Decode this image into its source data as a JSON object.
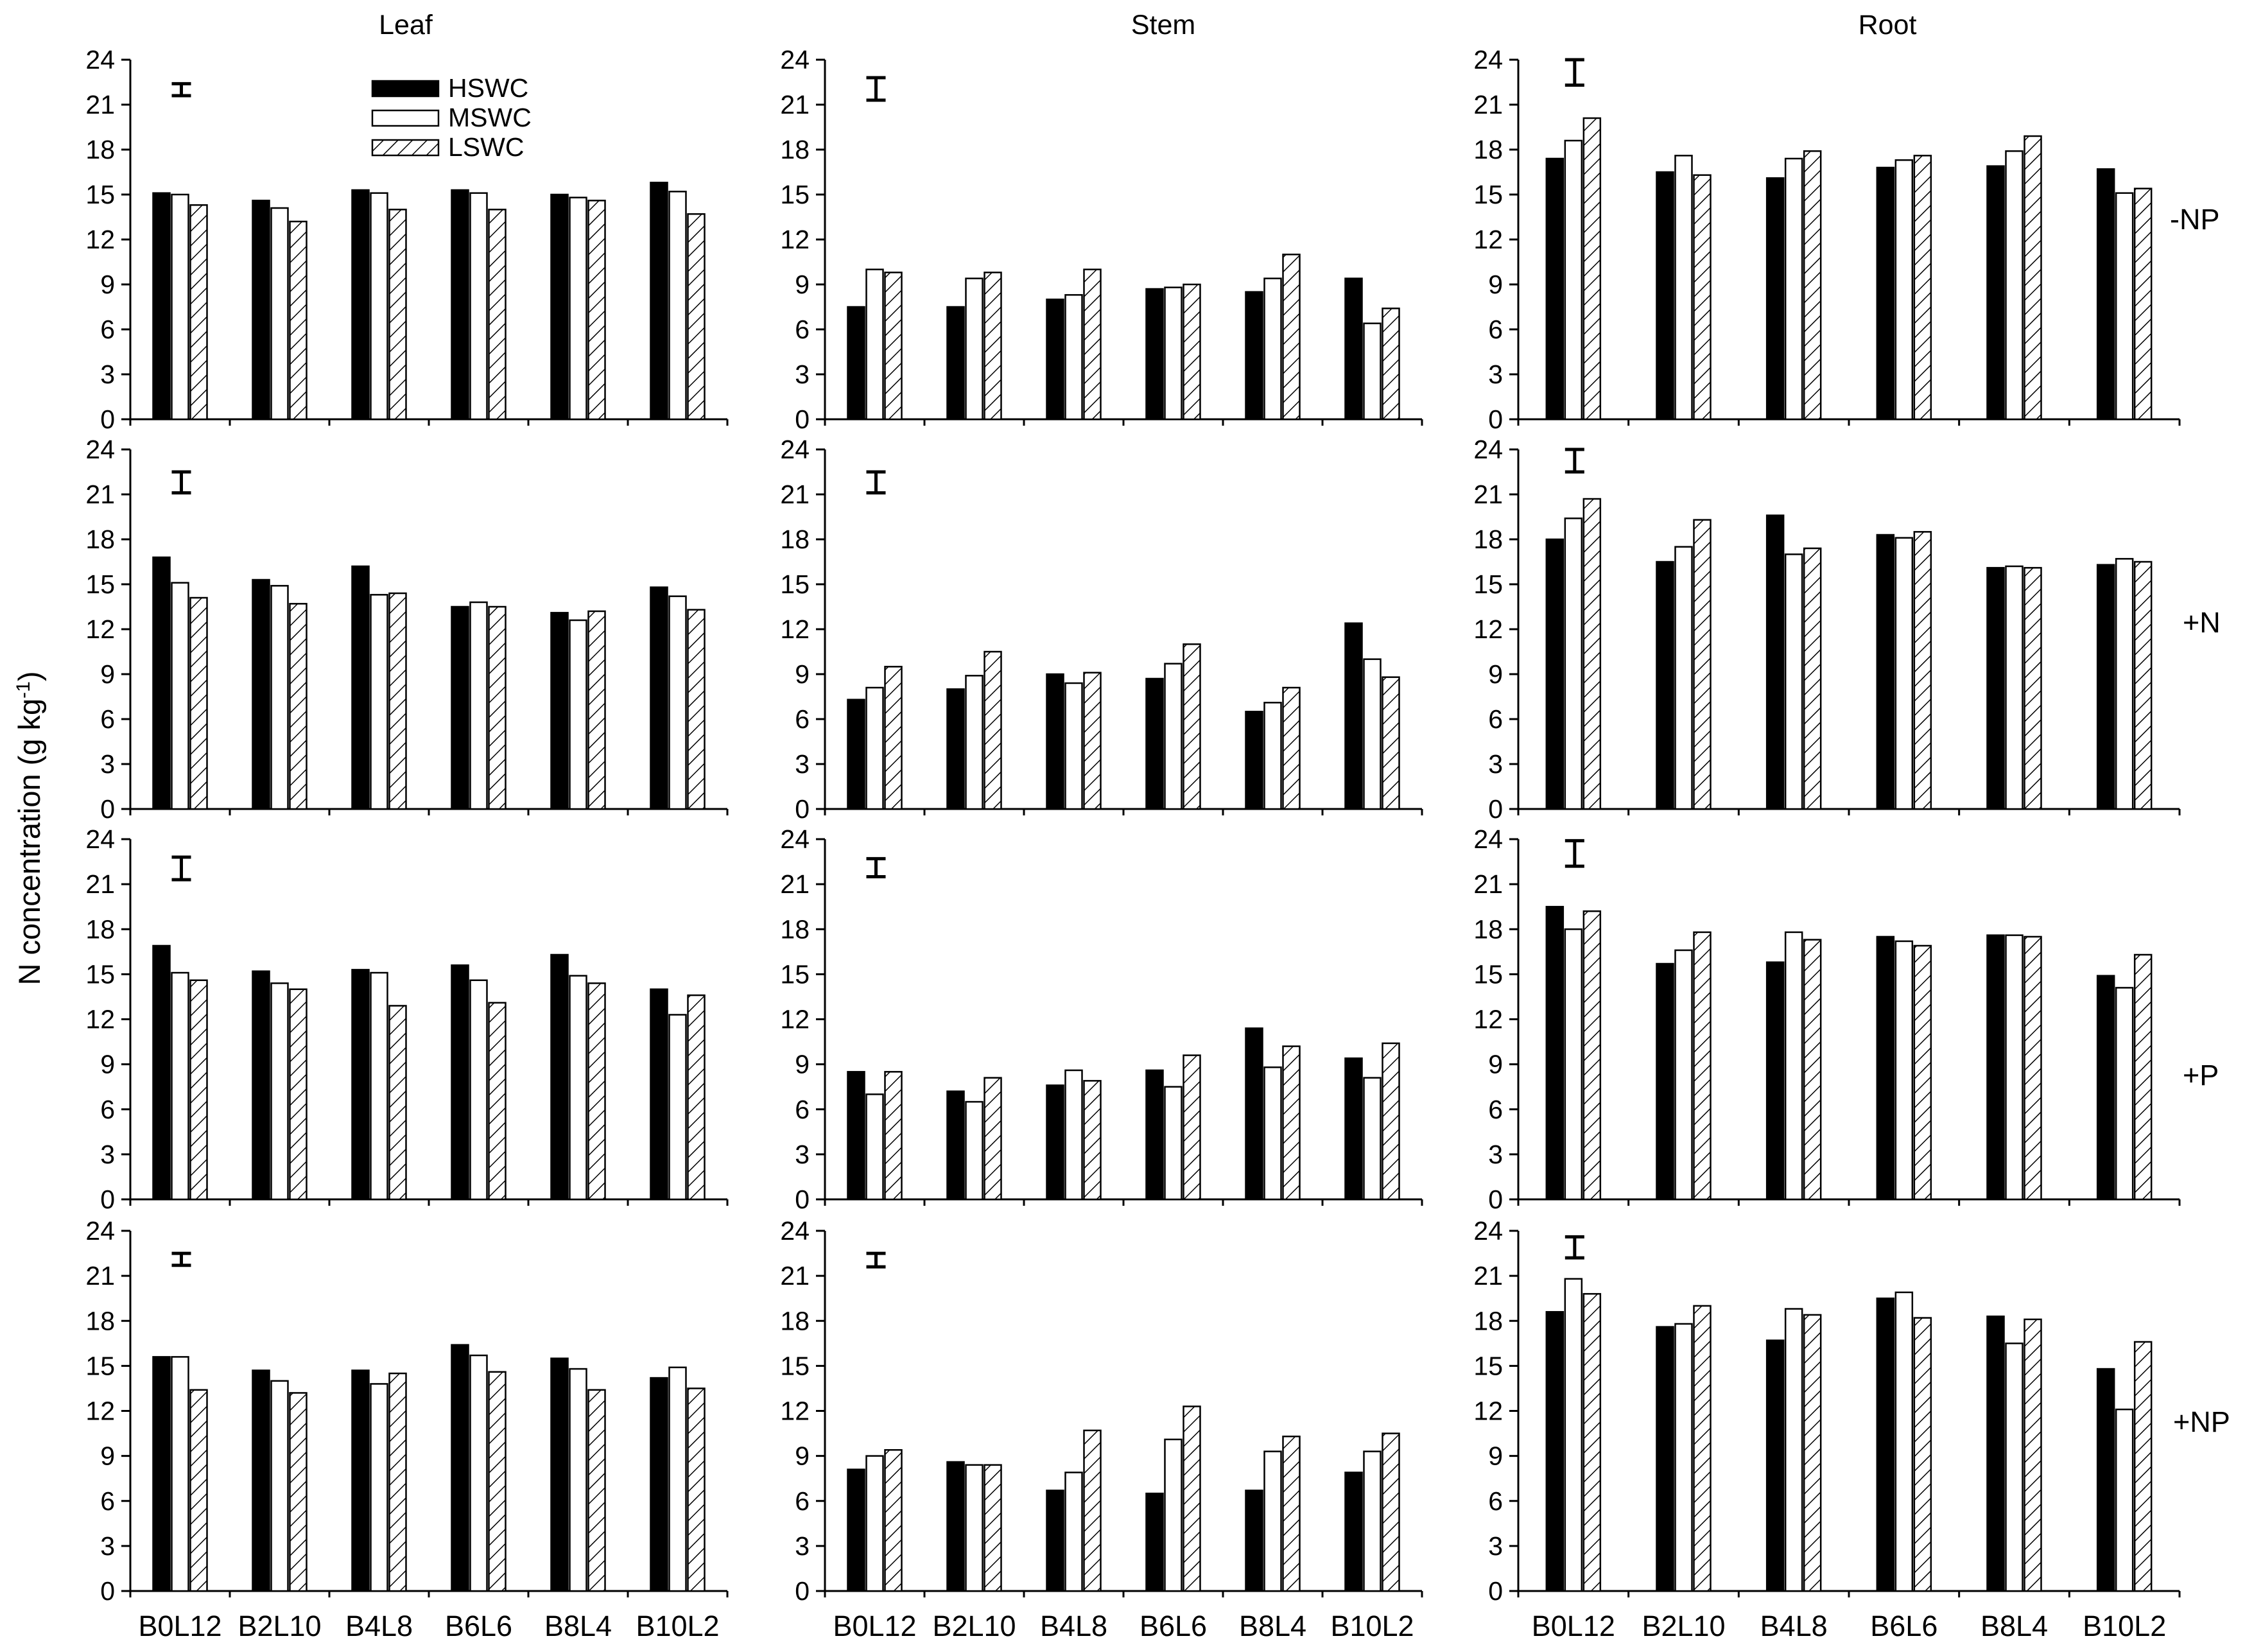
{
  "figure": {
    "ylabel": "N concentration (g kg",
    "ylabel_superscript": "-1",
    "ylabel_close": ")",
    "columns": [
      "Leaf",
      "Stem",
      "Root"
    ],
    "rows": [
      "-NP",
      "+N",
      "+P",
      "+NP"
    ],
    "legend": [
      "HSWC",
      "MSWC",
      "LSWC"
    ],
    "categories": [
      "B0L12",
      "B2L10",
      "B4L8",
      "B6L6",
      "B8L4",
      "B10L2"
    ],
    "yticks": [
      "0",
      "3",
      "6",
      "9",
      "12",
      "15",
      "18",
      "21",
      "24"
    ]
  },
  "colors": {
    "HSWC": "#000000",
    "MSWC": "#ffffff",
    "LSWC": "hatch"
  },
  "chart_data": [
    {
      "type": "bar",
      "organ": "Leaf",
      "treatment": "-NP",
      "ylim": [
        0,
        24
      ],
      "error_bar": [
        21.6,
        22.4
      ],
      "series": [
        {
          "name": "HSWC",
          "values": [
            15.1,
            14.6,
            15.3,
            15.3,
            15.0,
            15.8
          ]
        },
        {
          "name": "MSWC",
          "values": [
            15.0,
            14.1,
            15.1,
            15.1,
            14.8,
            15.2
          ]
        },
        {
          "name": "LSWC",
          "values": [
            14.3,
            13.2,
            14.0,
            14.0,
            14.6,
            13.7
          ]
        }
      ]
    },
    {
      "type": "bar",
      "organ": "Stem",
      "treatment": "-NP",
      "ylim": [
        0,
        24
      ],
      "error_bar": [
        21.3,
        22.8
      ],
      "series": [
        {
          "name": "HSWC",
          "values": [
            7.5,
            7.5,
            8.0,
            8.7,
            8.5,
            9.4
          ]
        },
        {
          "name": "MSWC",
          "values": [
            10.0,
            9.4,
            8.3,
            8.8,
            9.4,
            6.4
          ]
        },
        {
          "name": "LSWC",
          "values": [
            9.8,
            9.8,
            10.0,
            9.0,
            11.0,
            7.4
          ]
        }
      ]
    },
    {
      "type": "bar",
      "organ": "Root",
      "treatment": "-NP",
      "ylim": [
        0,
        24
      ],
      "error_bar": [
        22.3,
        24.0
      ],
      "series": [
        {
          "name": "HSWC",
          "values": [
            17.4,
            16.5,
            16.1,
            16.8,
            16.9,
            16.7
          ]
        },
        {
          "name": "MSWC",
          "values": [
            18.6,
            17.6,
            17.4,
            17.3,
            17.9,
            15.1
          ]
        },
        {
          "name": "LSWC",
          "values": [
            20.1,
            16.3,
            17.9,
            17.6,
            18.9,
            15.4
          ]
        }
      ]
    },
    {
      "type": "bar",
      "organ": "Leaf",
      "treatment": "+N",
      "ylim": [
        0,
        24
      ],
      "error_bar": [
        21.1,
        22.5
      ],
      "series": [
        {
          "name": "HSWC",
          "values": [
            16.8,
            15.3,
            16.2,
            13.5,
            13.1,
            14.8
          ]
        },
        {
          "name": "MSWC",
          "values": [
            15.1,
            14.9,
            14.3,
            13.8,
            12.6,
            14.2
          ]
        },
        {
          "name": "LSWC",
          "values": [
            14.1,
            13.7,
            14.4,
            13.5,
            13.2,
            13.3
          ]
        }
      ]
    },
    {
      "type": "bar",
      "organ": "Stem",
      "treatment": "+N",
      "ylim": [
        0,
        24
      ],
      "error_bar": [
        21.1,
        22.5
      ],
      "series": [
        {
          "name": "HSWC",
          "values": [
            7.3,
            8.0,
            9.0,
            8.7,
            6.5,
            12.4
          ]
        },
        {
          "name": "MSWC",
          "values": [
            8.1,
            8.9,
            8.4,
            9.7,
            7.1,
            10.0
          ]
        },
        {
          "name": "LSWC",
          "values": [
            9.5,
            10.5,
            9.1,
            11.0,
            8.1,
            8.8
          ]
        }
      ]
    },
    {
      "type": "bar",
      "organ": "Root",
      "treatment": "+N",
      "ylim": [
        0,
        24
      ],
      "error_bar": [
        22.5,
        24.0
      ],
      "series": [
        {
          "name": "HSWC",
          "values": [
            18.0,
            16.5,
            19.6,
            18.3,
            16.1,
            16.3
          ]
        },
        {
          "name": "MSWC",
          "values": [
            19.4,
            17.5,
            17.0,
            18.1,
            16.2,
            16.7
          ]
        },
        {
          "name": "LSWC",
          "values": [
            20.7,
            19.3,
            17.4,
            18.5,
            16.1,
            16.5
          ]
        }
      ]
    },
    {
      "type": "bar",
      "organ": "Leaf",
      "treatment": "+P",
      "ylim": [
        0,
        24
      ],
      "error_bar": [
        21.3,
        22.8
      ],
      "series": [
        {
          "name": "HSWC",
          "values": [
            16.9,
            15.2,
            15.3,
            15.6,
            16.3,
            14.0
          ]
        },
        {
          "name": "MSWC",
          "values": [
            15.1,
            14.4,
            15.1,
            14.6,
            14.9,
            12.3
          ]
        },
        {
          "name": "LSWC",
          "values": [
            14.6,
            14.0,
            12.9,
            13.1,
            14.4,
            13.6
          ]
        }
      ]
    },
    {
      "type": "bar",
      "organ": "Stem",
      "treatment": "+P",
      "ylim": [
        0,
        24
      ],
      "error_bar": [
        21.5,
        22.7
      ],
      "series": [
        {
          "name": "HSWC",
          "values": [
            8.5,
            7.2,
            7.6,
            8.6,
            11.4,
            9.4
          ]
        },
        {
          "name": "MSWC",
          "values": [
            7.0,
            6.5,
            8.6,
            7.5,
            8.8,
            8.1
          ]
        },
        {
          "name": "LSWC",
          "values": [
            8.5,
            8.1,
            7.9,
            9.6,
            10.2,
            10.4
          ]
        }
      ]
    },
    {
      "type": "bar",
      "organ": "Root",
      "treatment": "+P",
      "ylim": [
        0,
        24
      ],
      "error_bar": [
        22.2,
        23.9
      ],
      "series": [
        {
          "name": "HSWC",
          "values": [
            19.5,
            15.7,
            15.8,
            17.5,
            17.6,
            14.9
          ]
        },
        {
          "name": "MSWC",
          "values": [
            18.0,
            16.6,
            17.8,
            17.2,
            17.6,
            14.1
          ]
        },
        {
          "name": "LSWC",
          "values": [
            19.2,
            17.8,
            17.3,
            16.9,
            17.5,
            16.3
          ]
        }
      ]
    },
    {
      "type": "bar",
      "organ": "Leaf",
      "treatment": "+NP",
      "ylim": [
        0,
        24
      ],
      "error_bar": [
        21.7,
        22.5
      ],
      "series": [
        {
          "name": "HSWC",
          "values": [
            15.6,
            14.7,
            14.7,
            16.4,
            15.5,
            14.2
          ]
        },
        {
          "name": "MSWC",
          "values": [
            15.6,
            14.0,
            13.8,
            15.7,
            14.8,
            14.9
          ]
        },
        {
          "name": "LSWC",
          "values": [
            13.4,
            13.2,
            14.5,
            14.6,
            13.4,
            13.5
          ]
        }
      ]
    },
    {
      "type": "bar",
      "organ": "Stem",
      "treatment": "+NP",
      "ylim": [
        0,
        24
      ],
      "error_bar": [
        21.6,
        22.5
      ],
      "series": [
        {
          "name": "HSWC",
          "values": [
            8.1,
            8.6,
            6.7,
            6.5,
            6.7,
            7.9
          ]
        },
        {
          "name": "MSWC",
          "values": [
            9.0,
            8.4,
            7.9,
            10.1,
            9.3,
            9.3
          ]
        },
        {
          "name": "LSWC",
          "values": [
            9.4,
            8.4,
            10.7,
            12.3,
            10.3,
            10.5
          ]
        }
      ]
    },
    {
      "type": "bar",
      "organ": "Root",
      "treatment": "+NP",
      "ylim": [
        0,
        24
      ],
      "error_bar": [
        22.2,
        23.6
      ],
      "series": [
        {
          "name": "HSWC",
          "values": [
            18.6,
            17.6,
            16.7,
            19.5,
            18.3,
            14.8
          ]
        },
        {
          "name": "MSWC",
          "values": [
            20.8,
            17.8,
            18.8,
            19.9,
            16.5,
            12.1
          ]
        },
        {
          "name": "LSWC",
          "values": [
            19.8,
            19.0,
            18.4,
            18.2,
            18.1,
            16.6
          ]
        }
      ]
    }
  ]
}
